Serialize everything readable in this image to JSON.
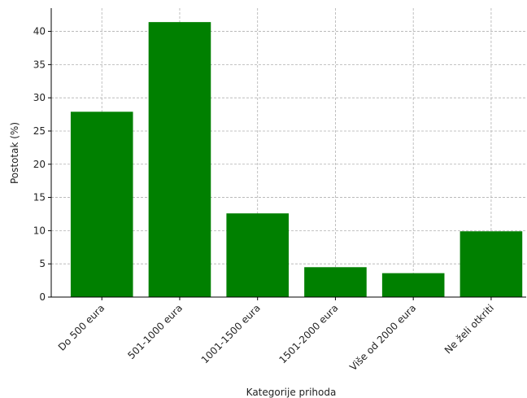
{
  "chart_data": {
    "type": "bar",
    "title": "",
    "xlabel": "Kategorije prihoda",
    "ylabel": "Postotak (%)",
    "categories": [
      "Do 500 eura",
      "501-1000 eura",
      "1001-1500 eura",
      "1501-2000 eura",
      "Više od 2000 eura",
      "Ne želi otkriti"
    ],
    "values": [
      27.9,
      41.4,
      12.6,
      4.5,
      3.6,
      9.9
    ],
    "ylim": [
      0,
      43.5
    ],
    "yticks": [
      0,
      5,
      10,
      15,
      20,
      25,
      30,
      35,
      40
    ],
    "grid": true,
    "colors": {
      "bar": "#008000"
    }
  }
}
